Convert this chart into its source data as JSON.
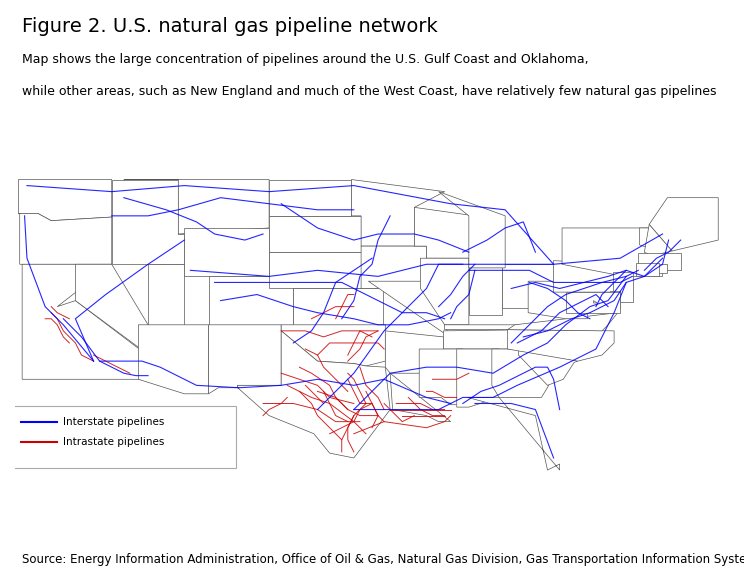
{
  "title": "Figure 2. U.S. natural gas pipeline network",
  "subtitle_line1": "Map shows the large concentration of pipelines around the U.S. Gulf Coast and Oklahoma,",
  "subtitle_line2": "while other areas, such as New England and much of the West Coast, have relatively few natural gas pipelines",
  "source": "Source: Energy Information Administration, Office of Oil & Gas, Natural Gas Division, Gas Transportation Information System",
  "legend_interstate": "Interstate pipelines",
  "legend_intrastate": "Intrastate pipelines",
  "interstate_color": "#0000FF",
  "intrastate_color": "#CC0000",
  "background_color": "#FFFFFF",
  "map_background": "#FFFFFF",
  "border_color": "#333333",
  "title_fontsize": 14,
  "subtitle_fontsize": 9,
  "source_fontsize": 8.5,
  "xlim": [
    -125,
    -66
  ],
  "ylim": [
    24,
    50
  ]
}
